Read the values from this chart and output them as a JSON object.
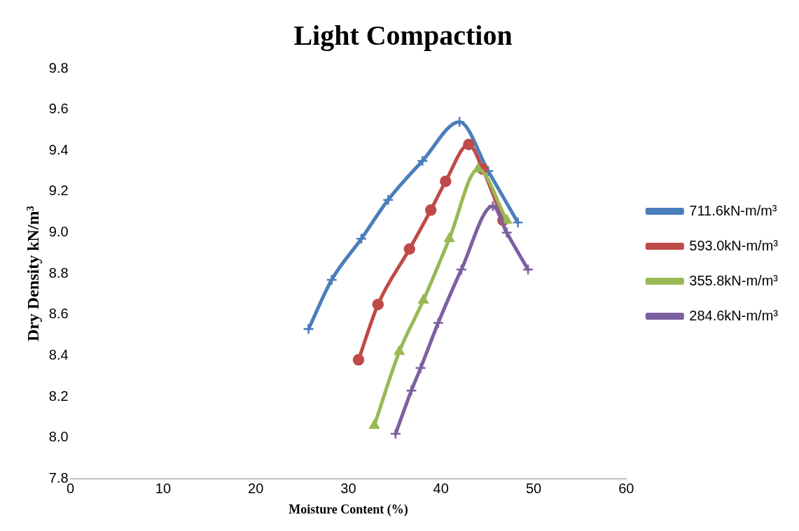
{
  "chart_data": {
    "type": "line",
    "title": "Light Compaction",
    "xlabel": "Moisture Content (%)",
    "ylabel": "Dry Density kN/m³",
    "xlim": [
      0,
      60
    ],
    "xticks": [
      0,
      10,
      20,
      30,
      40,
      50,
      60
    ],
    "ylim": [
      7.8,
      9.8
    ],
    "yticks": [
      7.8,
      {
        "value": 8,
        "label": "8.0"
      },
      8.2,
      8.4,
      8.6,
      8.8,
      {
        "value": 9,
        "label": "9.0"
      },
      9.2,
      9.4,
      9.6,
      9.8
    ],
    "grid": false,
    "legend": "right",
    "line_style": "solid",
    "series": [
      {
        "name": "711.6kN-m/m³",
        "color": "#4a7ebb",
        "marker": "cross",
        "x": [
          25.7,
          28.2,
          31.4,
          34.3,
          38.0,
          42.0,
          45.1,
          48.3
        ],
        "values": [
          8.53,
          8.77,
          8.97,
          9.16,
          9.35,
          9.54,
          9.3,
          9.05
        ]
      },
      {
        "name": "593.0kN-m/m³",
        "color": "#be4b48",
        "marker": "circle",
        "x": [
          31.1,
          33.2,
          36.6,
          38.9,
          40.5,
          43.0,
          44.5,
          46.7
        ],
        "values": [
          8.38,
          8.65,
          8.92,
          9.11,
          9.25,
          9.43,
          9.31,
          9.06
        ]
      },
      {
        "name": "355.8kN-m/m³",
        "color": "#98b954",
        "marker": "triangle",
        "x": [
          32.8,
          35.5,
          38.1,
          40.9,
          44.0,
          47.1
        ],
        "values": [
          8.06,
          8.42,
          8.67,
          8.97,
          9.31,
          9.06
        ]
      },
      {
        "name": "284.6kN-m/m³",
        "color": "#7d60a0",
        "marker": "cross",
        "x": [
          35.1,
          36.8,
          37.8,
          39.7,
          42.2,
          45.6,
          47.1,
          49.4
        ],
        "values": [
          8.02,
          8.23,
          8.34,
          8.56,
          8.82,
          9.13,
          9.0,
          8.82
        ]
      }
    ]
  }
}
